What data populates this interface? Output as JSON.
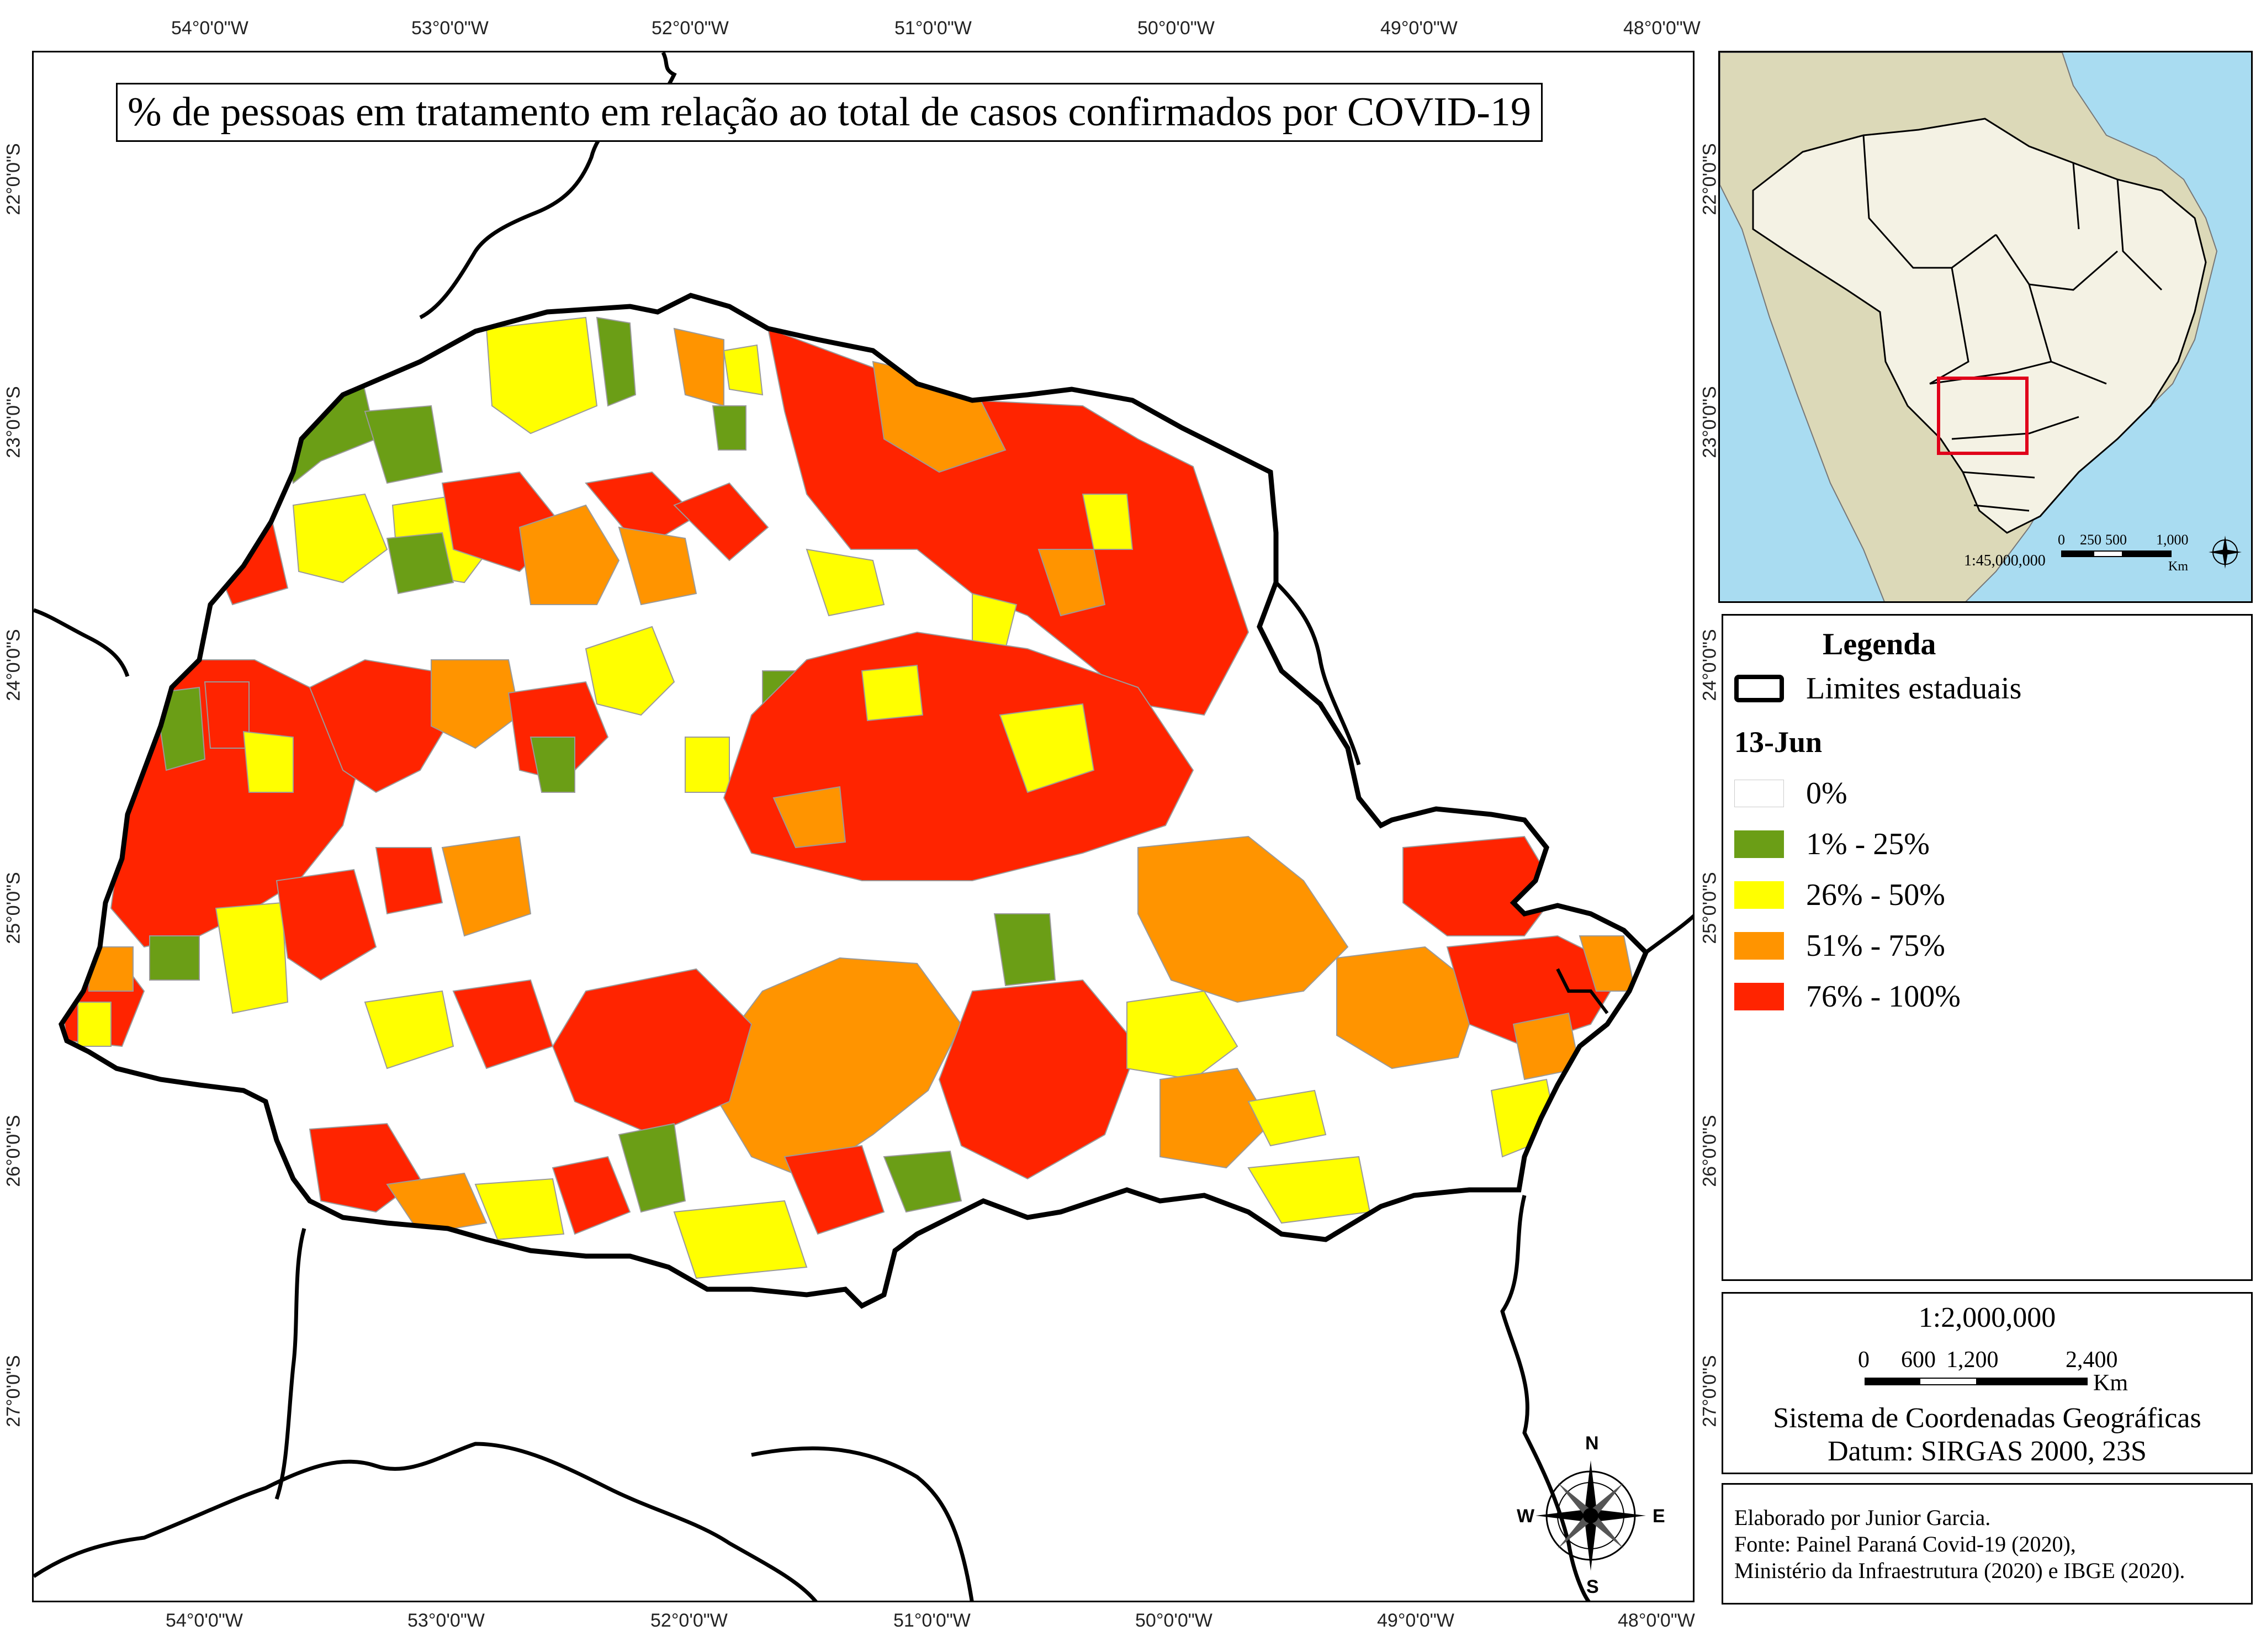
{
  "title": "% de pessoas em tratamento em relação ao total de casos confirmados por COVID-19",
  "longitude_labels": [
    "54°0'0\"W",
    "53°0'0\"W",
    "52°0'0\"W",
    "51°0'0\"W",
    "50°0'0\"W",
    "49°0'0\"W",
    "48°0'0\"W"
  ],
  "latitude_labels": [
    "22°0'0\"S",
    "23°0'0\"S",
    "24°0'0\"S",
    "25°0'0\"S",
    "26°0'0\"S",
    "27°0'0\"S"
  ],
  "inset": {
    "scale_text": "1:45,000,000",
    "scale_ticks": [
      "0",
      "250",
      "500",
      "1,000"
    ],
    "scale_unit": "Km"
  },
  "legend": {
    "title": "Legenda",
    "boundary_label": "Limites estaduais",
    "date": "13-Jun",
    "classes": [
      {
        "label": "0%",
        "color": "#ffffff"
      },
      {
        "label": "1% - 25%",
        "color": "#6b9e16"
      },
      {
        "label": "26% - 50%",
        "color": "#ffff00"
      },
      {
        "label": "51% - 75%",
        "color": "#ff9400"
      },
      {
        "label": "76% - 100%",
        "color": "#ff2400"
      }
    ]
  },
  "scale": {
    "ratio": "1:2,000,000",
    "ticks": [
      "0",
      "600",
      "1,200",
      "2,400"
    ],
    "unit": "Km",
    "crs": "Sistema de Coordenadas Geográficas",
    "datum": "Datum: SIRGAS 2000, 23S"
  },
  "credits": {
    "author": "Elaborado por Junior Garcia.",
    "source1": "Fonte: Painel Paraná Covid-19 (2020),",
    "source2": "Ministério da Infraestrutura (2020) e IBGE (2020)."
  },
  "compass": {
    "n": "N",
    "s": "S",
    "e": "E",
    "w": "W"
  },
  "colors": {
    "ocean": "#a9dcf1",
    "land": "#dcd9b8",
    "brazil": "#f4f2e4",
    "highlight": "#e0001a"
  }
}
